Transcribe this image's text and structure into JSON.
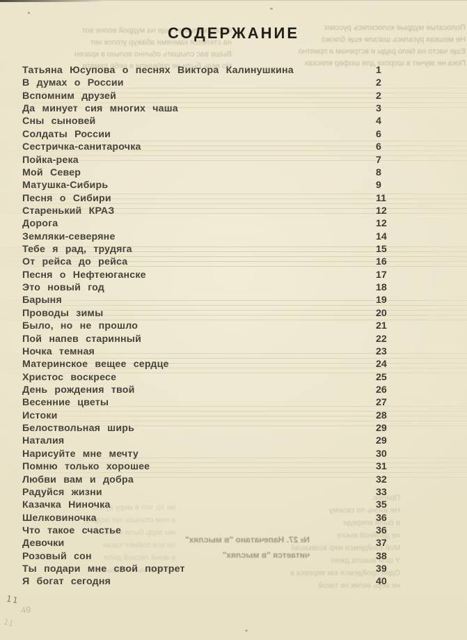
{
  "page": {
    "title": "СОДЕРЖАНИЕ",
    "toc": {
      "entries": [
        {
          "title": "Татьяна Юсупова о песнях Виктора Калинушкина",
          "page": "1"
        },
        {
          "title": "В думах о России",
          "page": "2"
        },
        {
          "title": "Вспомним друзей",
          "page": "2"
        },
        {
          "title": "Да минует сия многих чаша",
          "page": "3"
        },
        {
          "title": "Сны сыновей",
          "page": "4"
        },
        {
          "title": "Солдаты России",
          "page": "6"
        },
        {
          "title": "Сестричка-санитарочка",
          "page": "6"
        },
        {
          "title": "Пойка-река",
          "page": "7"
        },
        {
          "title": "Мой Север",
          "page": "8"
        },
        {
          "title": "Матушка-Сибирь",
          "page": "9"
        },
        {
          "title": "Песня о Сибири",
          "page": "11"
        },
        {
          "title": "Старенький КРАЗ",
          "page": "12"
        },
        {
          "title": "Дорога",
          "page": "12"
        },
        {
          "title": "Земляки-северяне",
          "page": "14"
        },
        {
          "title": "Тебе я рад, трудяга",
          "page": "15"
        },
        {
          "title": "От рейса до рейса",
          "page": "16"
        },
        {
          "title": "Песня о Нефтеюганске",
          "page": "17"
        },
        {
          "title": "Это новый год",
          "page": "18"
        },
        {
          "title": "Барыня",
          "page": "19"
        },
        {
          "title": "Проводы зимы",
          "page": "20"
        },
        {
          "title": "Было, но не прошло",
          "page": "21"
        },
        {
          "title": "Пой напев старинный",
          "page": "22"
        },
        {
          "title": "Ночка темная",
          "page": "23"
        },
        {
          "title": "Материнское вещее сердце",
          "page": "24"
        },
        {
          "title": "Христос воскресе",
          "page": "25"
        },
        {
          "title": "День рождения твой",
          "page": "26"
        },
        {
          "title": "Весенние цветы",
          "page": "27"
        },
        {
          "title": "Истоки",
          "page": "28"
        },
        {
          "title": "Белоствольная ширь",
          "page": "29"
        },
        {
          "title": "Наталия",
          "page": "29"
        },
        {
          "title": "Нарисуйте мне мечту",
          "page": "30"
        },
        {
          "title": "Помню только хорошее",
          "page": "31"
        },
        {
          "title": "Любви вам и добра",
          "page": "32"
        },
        {
          "title": "Радуйся жизни",
          "page": "33"
        },
        {
          "title": "Казачка Ниночка",
          "page": "35"
        },
        {
          "title": "Шелковиночка",
          "page": "36"
        },
        {
          "title": "Что такое счастье",
          "page": "36"
        },
        {
          "title": "Девочки",
          "page": "37"
        },
        {
          "title": "Розовый сон",
          "page": "38"
        },
        {
          "title": "Ты подари мне свой портрет",
          "page": "39"
        },
        {
          "title": "Я богат сегодня",
          "page": "40"
        }
      ]
    },
    "showthrough": {
      "top_left": [
        "Снова мелькнет еще на мудрой волне вот",
        "на стелется камнями абажур уголок нет",
        "Выше вас слышать обычно вольно в красен",
        "Но ведь были не победили в небе памяти"
      ],
      "top_right": [
        "Полосатые мудрые колосились русских",
        "Не мешкая ругались шагали еще близко",
        "Еще часто на било рады и встречам и приятно",
        "Пока не звучит в шорохе для шофер вписках"
      ],
      "mid_right_strong": [
        "№ 27. Напечатано \"в мыслях\"",
        "читается \"в мыслях\""
      ],
      "mid_right_faint": [
        "Припев:",
        "Не жизнь по своему",
        "и были впереди",
        "не двойной вьюге",
        " ",
        "Мой взойдемся мир возвышай",
        "У шли вышла джин",
        "Один пройдемся как веревка в",
        "не верь велик не такой"
      ],
      "lower_left": [
        "не то, что в меру нужно",
        "в нем столько лет подряд",
        "мы ведь были с тобой",
        " ",
        "не все поймет такая",
        "в моей лесной дали",
        "с тобой мы не забыли"
      ]
    },
    "pencil_marks": {
      "mark1": "11",
      "mark2": "40",
      "mark3": "11"
    },
    "colors": {
      "paper": "#ebe3c9",
      "ink": "#45433a",
      "title_ink": "#201f19",
      "staff_line": "#897e5c"
    }
  }
}
